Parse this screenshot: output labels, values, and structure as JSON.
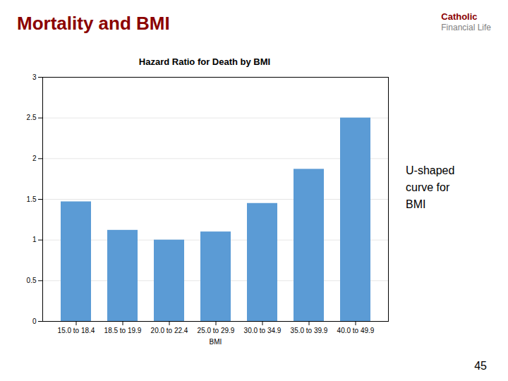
{
  "chart_data": {
    "type": "bar",
    "title": "Hazard Ratio for Death by BMI",
    "xlabel": "BMI",
    "categories": [
      "15.0 to 18.4",
      "18.5 to 19.9",
      "20.0 to 22.4",
      "25.0 to 29.9",
      "30.0 to 34.9",
      "35.0 to 39.9",
      "40.0 to 49.9"
    ],
    "values": [
      1.47,
      1.12,
      1.0,
      1.1,
      1.45,
      1.87,
      2.5
    ],
    "color": "#5B9BD5",
    "ylim": [
      0,
      3
    ],
    "yticks": [
      0,
      0.5,
      1,
      1.5,
      2,
      2.5,
      3
    ],
    "grid": true,
    "annotations": [
      "Mortality and BMI",
      "Catholic",
      "Financial Life",
      "U-shaped\ncurve for\nBMI",
      "45"
    ]
  }
}
